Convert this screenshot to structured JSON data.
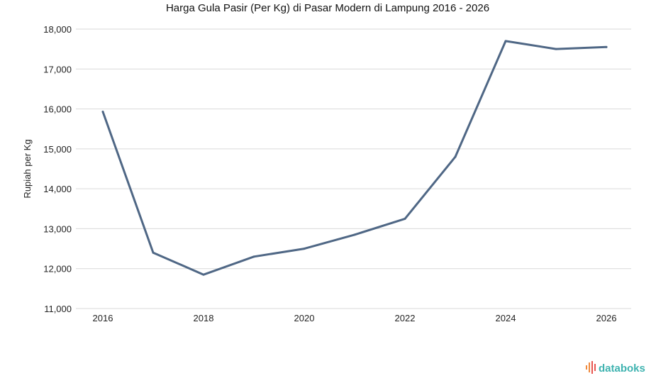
{
  "chart_data": {
    "type": "line",
    "title": "Harga Gula Pasir (Per Kg) di Pasar Modern di Lampung 2016 - 2026",
    "xlabel": "",
    "ylabel": "Rupiah per Kg",
    "x": [
      2016,
      2017,
      2018,
      2019,
      2020,
      2021,
      2022,
      2023,
      2024,
      2025,
      2026
    ],
    "values": [
      15930,
      12400,
      11850,
      12300,
      12500,
      12850,
      13250,
      14800,
      17700,
      17500,
      17550
    ],
    "xticks": [
      "2016",
      "2018",
      "2020",
      "2022",
      "2024",
      "2026"
    ],
    "yticks": [
      11000,
      12000,
      13000,
      14000,
      15000,
      16000,
      17000,
      18000
    ],
    "ytick_labels": [
      "11,000",
      "12,000",
      "13,000",
      "14,000",
      "15,000",
      "16,000",
      "17,000",
      "18,000"
    ],
    "ylim": [
      11000,
      18000
    ],
    "grid": true,
    "legend": "none",
    "line_color": "#4f6785"
  },
  "branding": {
    "logo_text": "databoks",
    "logo_color": "#3fb3b0"
  }
}
